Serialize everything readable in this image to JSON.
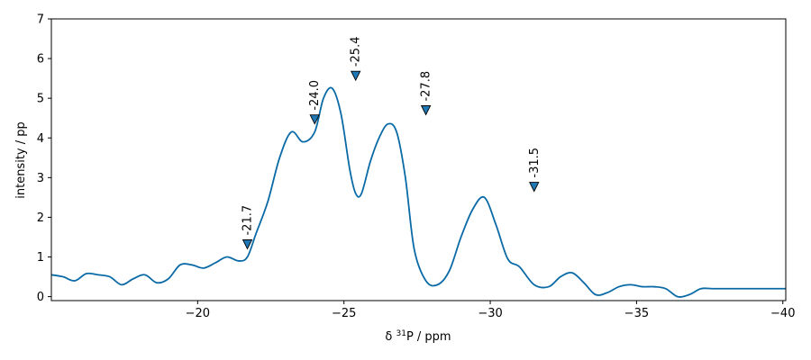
{
  "chart_data": {
    "type": "line",
    "xlabel": "δ ³¹P / ppm",
    "ylabel": "intensity / pp",
    "xlim": [
      -15,
      -40.1
    ],
    "ylim": [
      -0.1,
      7
    ],
    "x_ticks": [
      -20,
      -25,
      -30,
      -35,
      -40
    ],
    "x_tick_labels": [
      "−20",
      "−25",
      "−30",
      "−35",
      "−40"
    ],
    "y_ticks": [
      0,
      1,
      2,
      3,
      4,
      5,
      6,
      7
    ],
    "y_tick_labels": [
      "0",
      "1",
      "2",
      "3",
      "4",
      "5",
      "6",
      "7"
    ],
    "grid": false,
    "line_color": "#0a6aa6",
    "marker_color": "#1f77b4",
    "series": [
      {
        "x": [
          -15.0,
          -15.4,
          -15.8,
          -16.2,
          -16.6,
          -17.0,
          -17.4,
          -17.8,
          -18.2,
          -18.6,
          -19.0,
          -19.4,
          -19.8,
          -20.2,
          -20.6,
          -21.0,
          -21.4,
          -21.7,
          -22.0,
          -22.4,
          -22.8,
          -23.2,
          -23.6,
          -24.0,
          -24.3,
          -24.6,
          -24.9,
          -25.2,
          -25.4,
          -25.6,
          -25.9,
          -26.2,
          -26.5,
          -26.8,
          -27.1,
          -27.4,
          -27.8,
          -28.2,
          -28.6,
          -29.0,
          -29.4,
          -29.8,
          -30.2,
          -30.6,
          -31.0,
          -31.5,
          -32.0,
          -32.4,
          -32.8,
          -33.2,
          -33.6,
          -34.0,
          -34.4,
          -34.8,
          -35.2,
          -35.6,
          -36.0,
          -36.4,
          -36.8,
          -37.2,
          -37.6,
          -38.0,
          -38.4,
          -38.8,
          -39.2,
          -39.6,
          -40.1
        ],
        "y": [
          0.55,
          0.5,
          0.4,
          0.58,
          0.55,
          0.5,
          0.3,
          0.45,
          0.55,
          0.35,
          0.45,
          0.8,
          0.8,
          0.72,
          0.85,
          1.0,
          0.9,
          1.0,
          1.6,
          2.4,
          3.5,
          4.15,
          3.9,
          4.15,
          5.0,
          5.25,
          4.6,
          3.2,
          2.6,
          2.6,
          3.4,
          4.0,
          4.35,
          4.15,
          3.0,
          1.2,
          0.4,
          0.3,
          0.65,
          1.5,
          2.2,
          2.5,
          1.8,
          0.95,
          0.75,
          0.3,
          0.25,
          0.5,
          0.6,
          0.35,
          0.05,
          0.1,
          0.25,
          0.3,
          0.25,
          0.25,
          0.2,
          0.0,
          0.05,
          0.2,
          0.2,
          0.2,
          0.2,
          0.2,
          0.2,
          0.2,
          0.2
        ]
      }
    ],
    "annotations": [
      {
        "x": -21.7,
        "y": 1.0,
        "label": "-21.7"
      },
      {
        "x": -24.0,
        "y": 4.15,
        "label": "-24.0"
      },
      {
        "x": -25.4,
        "y": 5.25,
        "label": "-25.4"
      },
      {
        "x": -27.8,
        "y": 4.38,
        "label": "-27.8"
      },
      {
        "x": -31.5,
        "y": 2.45,
        "label": "-31.5"
      }
    ]
  }
}
